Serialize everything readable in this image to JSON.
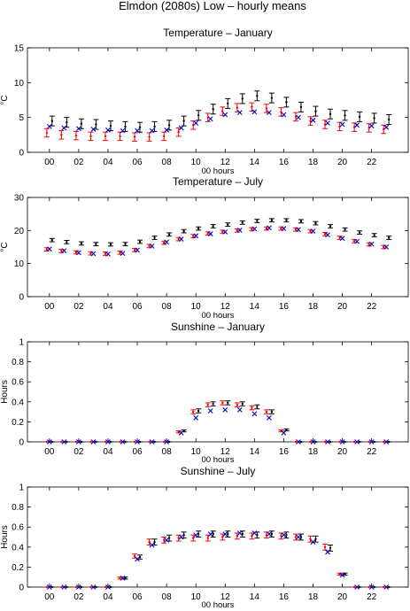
{
  "figure_title": "Elmdon (2080s) Low – hourly means",
  "colors": {
    "black_series": "#000000",
    "red_series": "#ff0000",
    "blue_series": "#0000cc"
  },
  "chart_data": [
    {
      "type": "scatter",
      "title": "Temperature – January",
      "xlabel": "00 hours",
      "ylabel": "°C",
      "ylim": [
        0,
        15
      ],
      "yticks": [
        0,
        5,
        10,
        15
      ],
      "xticks": [
        0,
        2,
        4,
        6,
        8,
        10,
        12,
        14,
        16,
        18,
        20,
        22
      ],
      "xtick_labels": [
        "00",
        "02",
        "04",
        "06",
        "08",
        "10",
        "12",
        "14",
        "16",
        "18",
        "20",
        "22"
      ],
      "hours": [
        0,
        1,
        2,
        3,
        4,
        5,
        6,
        7,
        8,
        9,
        10,
        11,
        12,
        13,
        14,
        15,
        16,
        17,
        18,
        19,
        20,
        21,
        22,
        23
      ],
      "series": [
        {
          "marker": "errorbar",
          "color": "#000000",
          "values": [
            4.5,
            4.3,
            4.1,
            4.0,
            3.8,
            3.7,
            3.6,
            3.7,
            3.9,
            4.5,
            5.3,
            6.2,
            7.0,
            7.7,
            8.1,
            7.8,
            7.2,
            6.5,
            5.9,
            5.5,
            5.3,
            5.1,
            4.9,
            4.7
          ],
          "error": [
            0.7,
            0.7,
            0.7,
            0.7,
            0.7,
            0.7,
            0.7,
            0.7,
            0.7,
            0.7,
            0.7,
            0.7,
            0.7,
            0.7,
            0.7,
            0.7,
            0.7,
            0.7,
            0.7,
            0.7,
            0.7,
            0.7,
            0.7,
            0.7
          ]
        },
        {
          "marker": "errorbar",
          "color": "#ff0000",
          "values": [
            2.8,
            2.5,
            2.4,
            2.3,
            2.3,
            2.3,
            2.2,
            2.2,
            2.3,
            2.9,
            3.9,
            5.0,
            5.9,
            6.4,
            6.5,
            6.3,
            5.8,
            5.1,
            4.5,
            4.0,
            3.7,
            3.6,
            3.5,
            3.3
          ],
          "error": [
            0.6,
            0.6,
            0.6,
            0.6,
            0.6,
            0.6,
            0.6,
            0.6,
            0.6,
            0.6,
            0.6,
            0.6,
            0.6,
            0.6,
            0.6,
            0.6,
            0.6,
            0.6,
            0.6,
            0.6,
            0.6,
            0.6,
            0.6,
            0.6
          ]
        },
        {
          "marker": "x",
          "color": "#0000cc",
          "values": [
            3.7,
            3.5,
            3.4,
            3.3,
            3.2,
            3.1,
            3.1,
            3.1,
            3.2,
            3.5,
            4.2,
            4.8,
            5.4,
            5.7,
            5.8,
            5.7,
            5.4,
            5.0,
            4.6,
            4.2,
            4.0,
            3.9,
            3.8,
            3.6
          ]
        }
      ]
    },
    {
      "type": "scatter",
      "title": "Temperature – July",
      "xlabel": "00 hours",
      "ylabel": "°C",
      "ylim": [
        0,
        30
      ],
      "yticks": [
        0,
        10,
        20,
        30
      ],
      "xticks": [
        0,
        2,
        4,
        6,
        8,
        10,
        12,
        14,
        16,
        18,
        20,
        22
      ],
      "xtick_labels": [
        "00",
        "02",
        "04",
        "06",
        "08",
        "10",
        "12",
        "14",
        "16",
        "18",
        "20",
        "22"
      ],
      "hours": [
        0,
        1,
        2,
        3,
        4,
        5,
        6,
        7,
        8,
        9,
        10,
        11,
        12,
        13,
        14,
        15,
        16,
        17,
        18,
        19,
        20,
        21,
        22,
        23
      ],
      "series": [
        {
          "marker": "errorbar",
          "color": "#000000",
          "values": [
            17.1,
            16.5,
            16.1,
            15.9,
            15.8,
            15.9,
            16.6,
            17.8,
            18.8,
            19.8,
            20.6,
            21.3,
            21.8,
            22.4,
            22.9,
            23.1,
            23.1,
            22.8,
            22.2,
            21.3,
            20.3,
            19.4,
            18.6,
            17.8
          ],
          "error": [
            0.5,
            0.5,
            0.5,
            0.5,
            0.5,
            0.5,
            0.5,
            0.5,
            0.5,
            0.5,
            0.5,
            0.5,
            0.5,
            0.5,
            0.5,
            0.5,
            0.5,
            0.5,
            0.5,
            0.5,
            0.5,
            0.5,
            0.5,
            0.5
          ]
        },
        {
          "marker": "errorbar",
          "color": "#ff0000",
          "values": [
            14.3,
            13.8,
            13.4,
            13.1,
            13.0,
            13.3,
            14.1,
            15.3,
            16.3,
            17.4,
            18.3,
            19.1,
            19.6,
            20.0,
            20.4,
            20.6,
            20.6,
            20.3,
            19.8,
            18.9,
            17.8,
            16.8,
            15.8,
            15.0
          ],
          "error": [
            0.5,
            0.5,
            0.5,
            0.5,
            0.5,
            0.5,
            0.5,
            0.5,
            0.5,
            0.5,
            0.5,
            0.5,
            0.5,
            0.5,
            0.5,
            0.5,
            0.5,
            0.5,
            0.5,
            0.5,
            0.5,
            0.5,
            0.5,
            0.5
          ]
        },
        {
          "marker": "x",
          "color": "#0000cc",
          "values": [
            14.4,
            13.9,
            13.3,
            13.0,
            12.9,
            13.1,
            14.1,
            15.3,
            16.5,
            17.4,
            18.4,
            19.0,
            19.6,
            20.1,
            20.5,
            20.8,
            20.6,
            20.3,
            19.8,
            18.7,
            17.6,
            16.7,
            15.9,
            15.0
          ]
        }
      ]
    },
    {
      "type": "scatter",
      "title": "Sunshine – January",
      "xlabel": "00 hours",
      "ylabel": "Hours",
      "ylim": [
        0,
        1
      ],
      "yticks": [
        0,
        0.2,
        0.4,
        0.6,
        0.8,
        1
      ],
      "ytick_labels": [
        "0",
        "0.2",
        "0.4",
        "0.6",
        "0.8",
        "1"
      ],
      "xticks": [
        0,
        2,
        4,
        6,
        8,
        10,
        12,
        14,
        16,
        18,
        20,
        22
      ],
      "xtick_labels": [
        "00",
        "02",
        "04",
        "06",
        "08",
        "10",
        "12",
        "14",
        "16",
        "18",
        "20",
        "22"
      ],
      "hours": [
        0,
        1,
        2,
        3,
        4,
        5,
        6,
        7,
        8,
        9,
        10,
        11,
        12,
        13,
        14,
        15,
        16,
        17,
        18,
        19,
        20,
        21,
        22,
        23
      ],
      "series": [
        {
          "marker": "errorbar",
          "color": "#000000",
          "values": [
            0,
            0,
            0,
            0,
            0,
            0,
            0,
            0,
            0,
            0.11,
            0.31,
            0.38,
            0.39,
            0.38,
            0.35,
            0.3,
            0.12,
            0,
            0,
            0,
            0,
            0,
            0,
            0
          ],
          "error": [
            0,
            0,
            0,
            0,
            0,
            0,
            0,
            0,
            0,
            0.01,
            0.02,
            0.02,
            0.02,
            0.02,
            0.02,
            0.02,
            0.01,
            0,
            0,
            0,
            0,
            0,
            0,
            0
          ]
        },
        {
          "marker": "errorbar",
          "color": "#ff0000",
          "values": [
            0,
            0,
            0,
            0,
            0,
            0,
            0,
            0,
            0,
            0.1,
            0.3,
            0.37,
            0.39,
            0.37,
            0.34,
            0.3,
            0.11,
            0,
            0,
            0,
            0,
            0,
            0,
            0
          ],
          "error": [
            0,
            0,
            0,
            0,
            0,
            0,
            0,
            0,
            0,
            0.01,
            0.02,
            0.02,
            0.02,
            0.02,
            0.02,
            0.02,
            0.01,
            0,
            0,
            0,
            0,
            0,
            0,
            0
          ]
        },
        {
          "marker": "x",
          "color": "#0000cc",
          "values": [
            0,
            0,
            0,
            0,
            0,
            0,
            0,
            0,
            0,
            0.09,
            0.24,
            0.31,
            0.32,
            0.32,
            0.28,
            0.24,
            0.09,
            0,
            0,
            0,
            0,
            0,
            0,
            0
          ]
        }
      ]
    },
    {
      "type": "scatter",
      "title": "Sunshine – July",
      "xlabel": "00 hours",
      "ylabel": "Hours",
      "ylim": [
        0,
        1
      ],
      "yticks": [
        0,
        0.2,
        0.4,
        0.6,
        0.8,
        1
      ],
      "ytick_labels": [
        "0",
        "0.2",
        "0.4",
        "0.6",
        "0.8",
        "1"
      ],
      "xticks": [
        0,
        2,
        4,
        6,
        8,
        10,
        12,
        14,
        16,
        18,
        20,
        22
      ],
      "xtick_labels": [
        "00",
        "02",
        "04",
        "06",
        "08",
        "10",
        "12",
        "14",
        "16",
        "18",
        "20",
        "22"
      ],
      "hours": [
        0,
        1,
        2,
        3,
        4,
        5,
        6,
        7,
        8,
        9,
        10,
        11,
        12,
        13,
        14,
        15,
        16,
        17,
        18,
        19,
        20,
        21,
        22,
        23
      ],
      "series": [
        {
          "marker": "errorbar",
          "color": "#000000",
          "values": [
            0,
            0,
            0,
            0,
            0,
            0.09,
            0.3,
            0.45,
            0.49,
            0.52,
            0.53,
            0.53,
            0.53,
            0.53,
            0.52,
            0.53,
            0.52,
            0.5,
            0.48,
            0.39,
            0.13,
            0,
            0,
            0
          ],
          "error": [
            0,
            0,
            0,
            0,
            0,
            0.01,
            0.02,
            0.03,
            0.03,
            0.03,
            0.03,
            0.03,
            0.03,
            0.03,
            0.03,
            0.03,
            0.03,
            0.03,
            0.03,
            0.03,
            0.01,
            0,
            0,
            0
          ]
        },
        {
          "marker": "errorbar",
          "color": "#ff0000",
          "values": [
            0,
            0,
            0,
            0,
            0,
            0.09,
            0.31,
            0.45,
            0.47,
            0.49,
            0.49,
            0.49,
            0.5,
            0.51,
            0.51,
            0.52,
            0.51,
            0.5,
            0.48,
            0.4,
            0.13,
            0,
            0,
            0
          ],
          "error": [
            0,
            0,
            0,
            0,
            0,
            0.01,
            0.02,
            0.03,
            0.03,
            0.03,
            0.03,
            0.03,
            0.03,
            0.03,
            0.03,
            0.03,
            0.03,
            0.03,
            0.03,
            0.03,
            0.01,
            0,
            0,
            0
          ]
        },
        {
          "marker": "x",
          "color": "#0000cc",
          "values": [
            0,
            0,
            0,
            0,
            0,
            0.09,
            0.28,
            0.42,
            0.47,
            0.5,
            0.52,
            0.53,
            0.53,
            0.54,
            0.54,
            0.53,
            0.52,
            0.5,
            0.45,
            0.35,
            0.12,
            0,
            0,
            0
          ]
        }
      ]
    }
  ]
}
